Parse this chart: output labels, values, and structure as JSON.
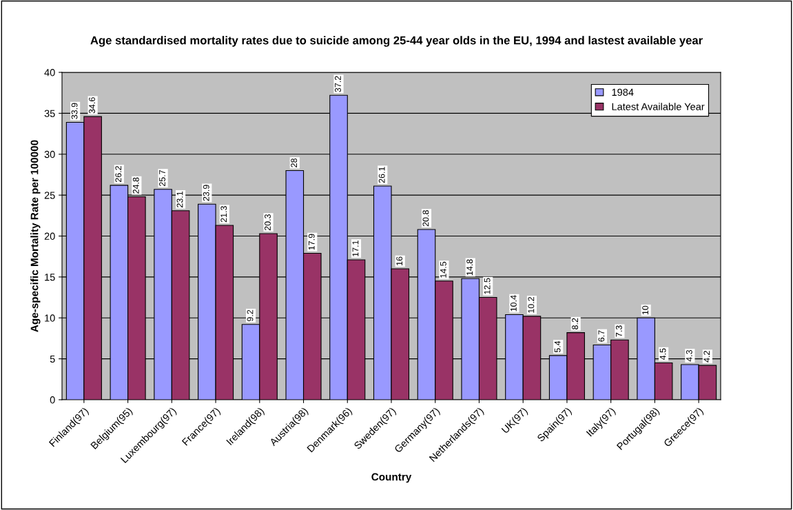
{
  "chart_data": {
    "type": "bar",
    "title": "Age standardised mortality rates due to suicide among 25-44 year olds in the EU, 1994 and lastest available year",
    "xlabel": "Country",
    "ylabel": "Age-specific Mortality Rate per 100000",
    "categories": [
      "Finland(97)",
      "Belgium(95)",
      "Luxembourg(97)",
      "France(97)",
      "Ireland(98)",
      "Austria(98)",
      "Denmark(96)",
      "Sweden(97)",
      "Germany(97)",
      "Netherlands(97)",
      "UK(97)",
      "Spain(97)",
      "Italy(97)",
      "Portugal(98)",
      "Greece(97)"
    ],
    "series": [
      {
        "name": "1984",
        "color": "#9999ff",
        "values": [
          33.9,
          26.2,
          25.7,
          23.9,
          9.2,
          28,
          37.2,
          26.1,
          20.8,
          14.8,
          10.4,
          5.4,
          6.7,
          10,
          4.3
        ]
      },
      {
        "name": "Latest Available Year",
        "color": "#993366",
        "values": [
          34.6,
          24.8,
          23.1,
          21.3,
          20.3,
          17.9,
          17.1,
          16,
          14.5,
          12.5,
          10.2,
          8.2,
          7.3,
          4.5,
          4.2
        ]
      }
    ],
    "ylim": [
      0,
      40
    ],
    "yticks": [
      0,
      5,
      10,
      15,
      20,
      25,
      30,
      35,
      40
    ],
    "grid": "y",
    "legend": "top right",
    "data_labels": true
  }
}
